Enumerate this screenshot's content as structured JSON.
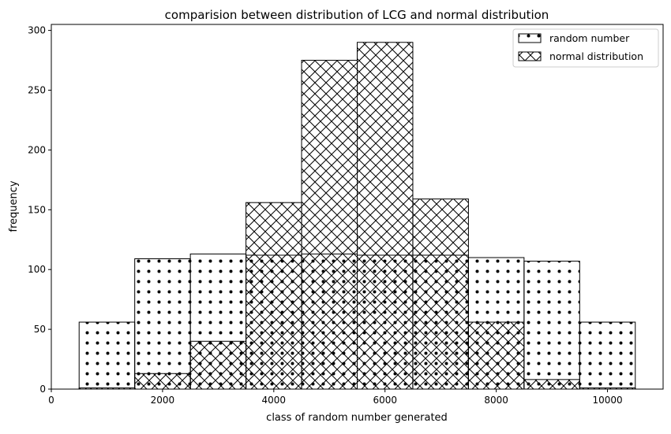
{
  "chart_data": {
    "type": "bar",
    "title": "comparision between distribution of LCG and normal distribution",
    "xlabel": "class of random number generated",
    "ylabel": "frequency",
    "xlim": [
      0,
      11000
    ],
    "ylim": [
      0,
      305
    ],
    "xticks": [
      0,
      2000,
      4000,
      6000,
      8000,
      10000
    ],
    "yticks": [
      0,
      50,
      100,
      150,
      200,
      250,
      300
    ],
    "bin_edges": [
      500,
      1500,
      2500,
      3500,
      4500,
      5500,
      6500,
      7500,
      8500,
      9500,
      10500
    ],
    "series": [
      {
        "name": "random number",
        "hatch": "dots",
        "values": [
          56,
          109,
          113,
          112,
          113,
          112,
          112,
          110,
          107,
          56
        ]
      },
      {
        "name": "normal distribution",
        "hatch": "crosshatch",
        "values": [
          1,
          13,
          40,
          156,
          275,
          290,
          159,
          56,
          8,
          1
        ]
      }
    ],
    "legend": "top-right",
    "grid": false
  }
}
